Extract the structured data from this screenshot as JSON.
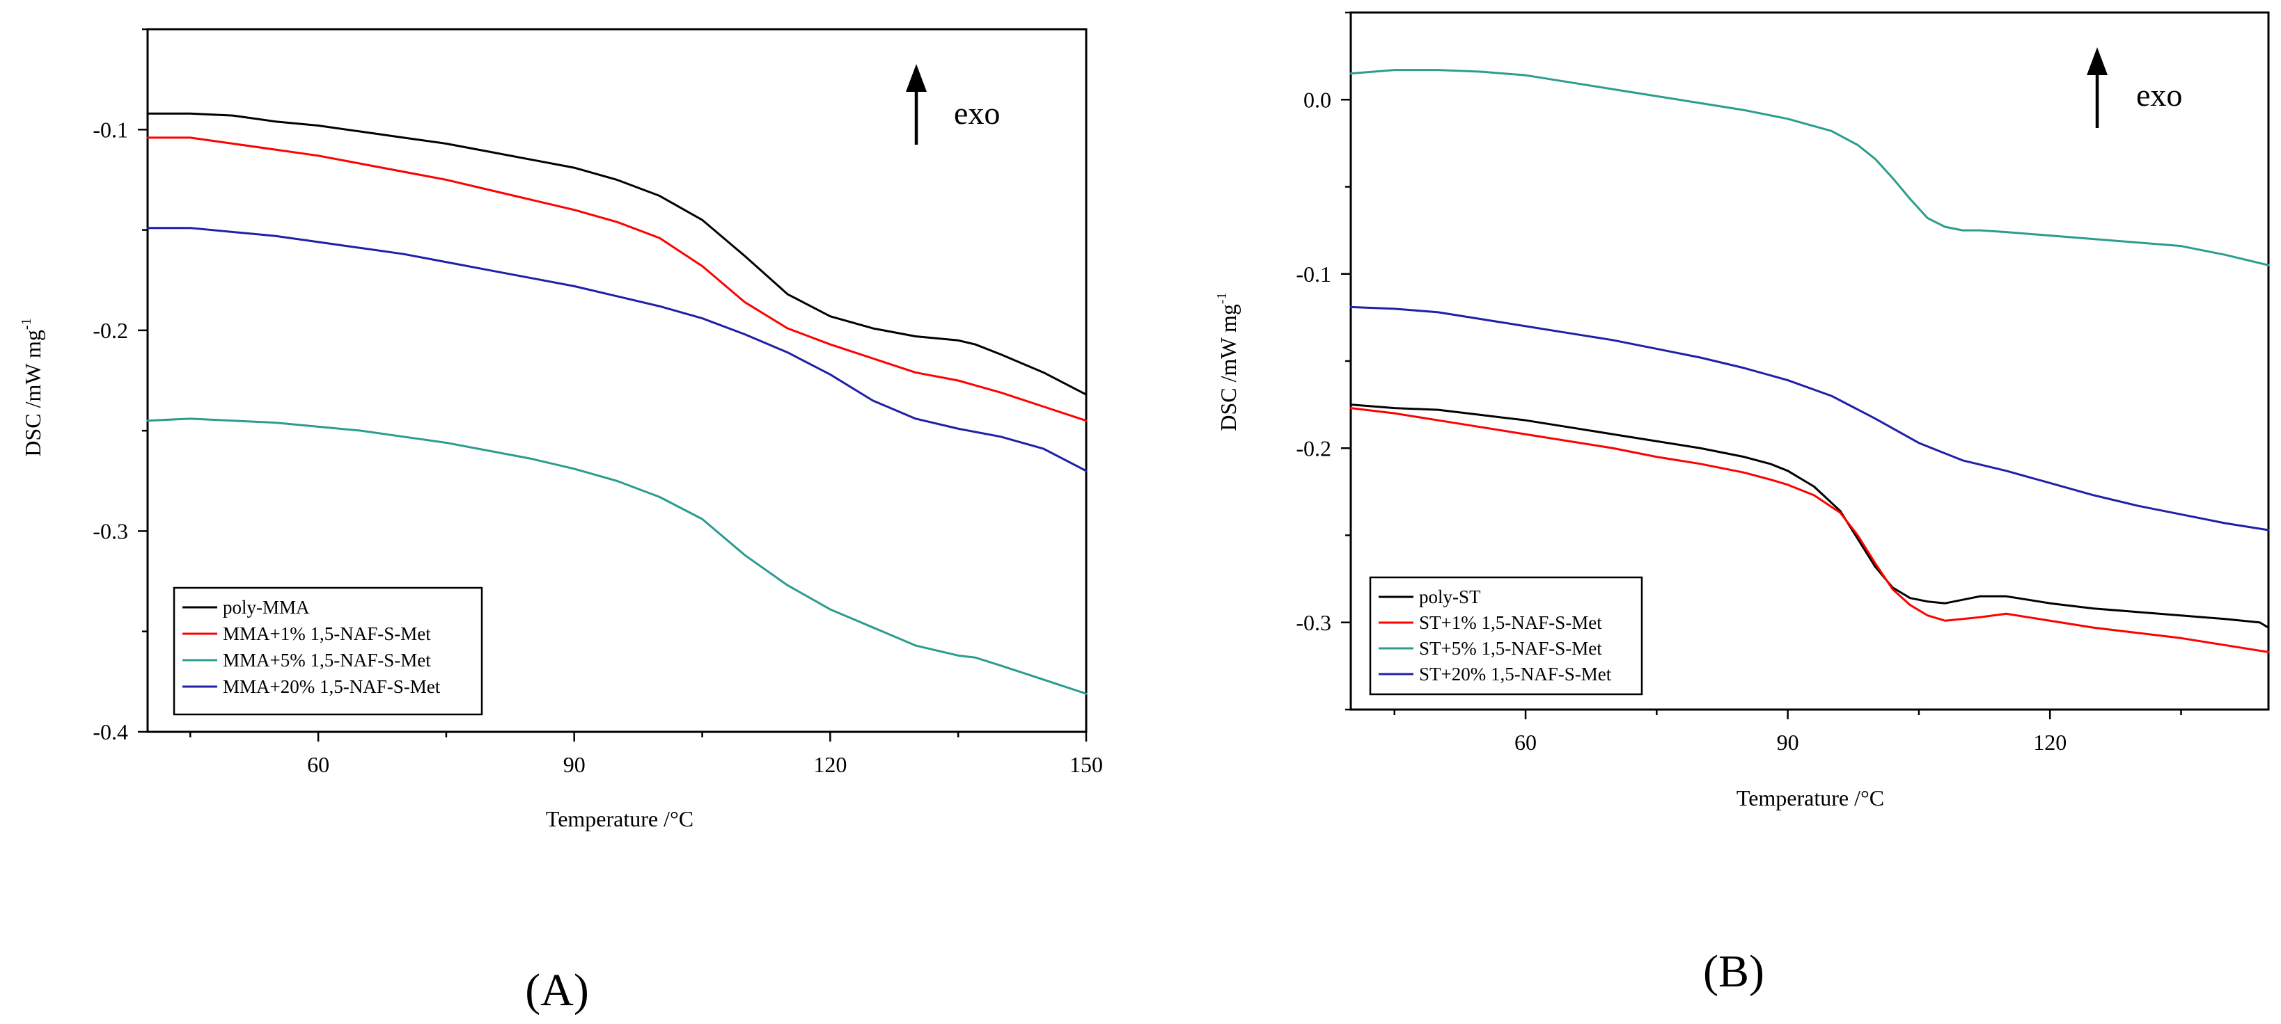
{
  "chart_data": [
    {
      "type": "line",
      "panel_label": "(A)",
      "annotation": "exo",
      "xlabel": "Temperature /°C",
      "ylabel": "DSC /mW mg",
      "ylabel_sup": "-1",
      "xlim": [
        40,
        150
      ],
      "ylim": [
        -0.4,
        -0.05
      ],
      "xticks": [
        60,
        90,
        120,
        150
      ],
      "yticks": [
        -0.1,
        -0.2,
        -0.3,
        -0.4
      ],
      "xtick_labels": [
        "60",
        "90",
        "120",
        "150"
      ],
      "ytick_labels": [
        "-0.1",
        "-0.2",
        "-0.3",
        "-0.4"
      ],
      "legend_position": "bottom-left",
      "series": [
        {
          "name": "poly-MMA",
          "color": "#000000",
          "x": [
            40,
            45,
            50,
            55,
            60,
            65,
            70,
            75,
            80,
            85,
            90,
            95,
            100,
            105,
            110,
            115,
            120,
            125,
            130,
            135,
            137,
            140,
            145,
            150
          ],
          "y": [
            -0.092,
            -0.092,
            -0.093,
            -0.096,
            -0.098,
            -0.101,
            -0.104,
            -0.107,
            -0.111,
            -0.115,
            -0.119,
            -0.125,
            -0.133,
            -0.145,
            -0.163,
            -0.182,
            -0.193,
            -0.199,
            -0.203,
            -0.205,
            -0.207,
            -0.212,
            -0.221,
            -0.232
          ]
        },
        {
          "name": "MMA+1% 1,5-NAF-S-Met",
          "color": "#ff0000",
          "x": [
            40,
            45,
            50,
            55,
            60,
            65,
            70,
            75,
            80,
            85,
            90,
            95,
            100,
            105,
            110,
            115,
            120,
            125,
            130,
            135,
            140,
            145,
            150
          ],
          "y": [
            -0.104,
            -0.104,
            -0.107,
            -0.11,
            -0.113,
            -0.117,
            -0.121,
            -0.125,
            -0.13,
            -0.135,
            -0.14,
            -0.146,
            -0.154,
            -0.168,
            -0.186,
            -0.199,
            -0.207,
            -0.214,
            -0.221,
            -0.225,
            -0.231,
            -0.238,
            -0.245
          ]
        },
        {
          "name": "MMA+5% 1,5-NAF-S-Met",
          "color": "#2a9d8f",
          "x": [
            40,
            45,
            50,
            55,
            60,
            65,
            70,
            75,
            80,
            85,
            90,
            95,
            100,
            105,
            110,
            115,
            120,
            125,
            130,
            135,
            137,
            140,
            145,
            150
          ],
          "y": [
            -0.245,
            -0.244,
            -0.245,
            -0.246,
            -0.248,
            -0.25,
            -0.253,
            -0.256,
            -0.26,
            -0.264,
            -0.269,
            -0.275,
            -0.283,
            -0.294,
            -0.312,
            -0.327,
            -0.339,
            -0.348,
            -0.357,
            -0.362,
            -0.363,
            -0.367,
            -0.374,
            -0.381
          ]
        },
        {
          "name": "MMA+20% 1,5-NAF-S-Met",
          "color": "#1f1fa8",
          "x": [
            40,
            45,
            50,
            55,
            60,
            65,
            70,
            75,
            80,
            85,
            90,
            95,
            100,
            105,
            110,
            115,
            120,
            125,
            130,
            135,
            140,
            145,
            150
          ],
          "y": [
            -0.149,
            -0.149,
            -0.151,
            -0.153,
            -0.156,
            -0.159,
            -0.162,
            -0.166,
            -0.17,
            -0.174,
            -0.178,
            -0.183,
            -0.188,
            -0.194,
            -0.202,
            -0.211,
            -0.222,
            -0.235,
            -0.244,
            -0.249,
            -0.253,
            -0.259,
            -0.27
          ]
        }
      ]
    },
    {
      "type": "line",
      "panel_label": "(B)",
      "annotation": "exo",
      "xlabel": "Temperature /°C",
      "ylabel": "DSC /mW mg",
      "ylabel_sup": "-1",
      "xlim": [
        40,
        145
      ],
      "ylim": [
        -0.35,
        0.05
      ],
      "xticks": [
        60,
        90,
        120
      ],
      "yticks": [
        0.0,
        -0.1,
        -0.2,
        -0.3
      ],
      "xtick_labels": [
        "60",
        "90",
        "120"
      ],
      "ytick_labels": [
        "0.0",
        "-0.1",
        "-0.2",
        "-0.3"
      ],
      "legend_position": "bottom-left",
      "series": [
        {
          "name": "poly-ST",
          "color": "#000000",
          "x": [
            40,
            45,
            50,
            55,
            60,
            65,
            70,
            75,
            80,
            85,
            88,
            90,
            93,
            96,
            98,
            100,
            102,
            104,
            106,
            108,
            110,
            112,
            115,
            120,
            125,
            130,
            135,
            140,
            144,
            145
          ],
          "y": [
            -0.175,
            -0.177,
            -0.178,
            -0.181,
            -0.184,
            -0.188,
            -0.192,
            -0.196,
            -0.2,
            -0.205,
            -0.209,
            -0.213,
            -0.222,
            -0.236,
            -0.252,
            -0.268,
            -0.28,
            -0.286,
            -0.288,
            -0.289,
            -0.287,
            -0.285,
            -0.285,
            -0.289,
            -0.292,
            -0.294,
            -0.296,
            -0.298,
            -0.3,
            -0.303
          ]
        },
        {
          "name": "ST+1% 1,5-NAF-S-Met",
          "color": "#ff0000",
          "x": [
            40,
            45,
            50,
            55,
            60,
            65,
            70,
            75,
            80,
            85,
            88,
            90,
            93,
            96,
            98,
            100,
            102,
            104,
            106,
            108,
            110,
            112,
            115,
            120,
            125,
            130,
            135,
            140,
            145
          ],
          "y": [
            -0.177,
            -0.18,
            -0.184,
            -0.188,
            -0.192,
            -0.196,
            -0.2,
            -0.205,
            -0.209,
            -0.214,
            -0.218,
            -0.221,
            -0.227,
            -0.237,
            -0.25,
            -0.266,
            -0.281,
            -0.29,
            -0.296,
            -0.299,
            -0.298,
            -0.297,
            -0.295,
            -0.299,
            -0.303,
            -0.306,
            -0.309,
            -0.313,
            -0.317
          ]
        },
        {
          "name": "ST+5% 1,5-NAF-S-Met",
          "color": "#2a9d8f",
          "x": [
            40,
            45,
            50,
            55,
            60,
            65,
            70,
            75,
            80,
            85,
            90,
            95,
            98,
            100,
            102,
            104,
            106,
            108,
            110,
            112,
            115,
            120,
            125,
            130,
            135,
            140,
            145
          ],
          "y": [
            0.015,
            0.017,
            0.017,
            0.016,
            0.014,
            0.01,
            0.006,
            0.002,
            -0.002,
            -0.006,
            -0.011,
            -0.018,
            -0.026,
            -0.034,
            -0.045,
            -0.057,
            -0.068,
            -0.073,
            -0.075,
            -0.075,
            -0.076,
            -0.078,
            -0.08,
            -0.082,
            -0.084,
            -0.089,
            -0.095
          ]
        },
        {
          "name": "ST+20% 1,5-NAF-S-Met",
          "color": "#1f1fa8",
          "x": [
            40,
            45,
            50,
            55,
            60,
            65,
            70,
            75,
            80,
            85,
            90,
            95,
            100,
            105,
            110,
            115,
            120,
            125,
            130,
            135,
            140,
            145
          ],
          "y": [
            -0.119,
            -0.12,
            -0.122,
            -0.126,
            -0.13,
            -0.134,
            -0.138,
            -0.143,
            -0.148,
            -0.154,
            -0.161,
            -0.17,
            -0.183,
            -0.197,
            -0.207,
            -0.213,
            -0.22,
            -0.227,
            -0.233,
            -0.238,
            -0.243,
            -0.247
          ]
        }
      ]
    }
  ]
}
